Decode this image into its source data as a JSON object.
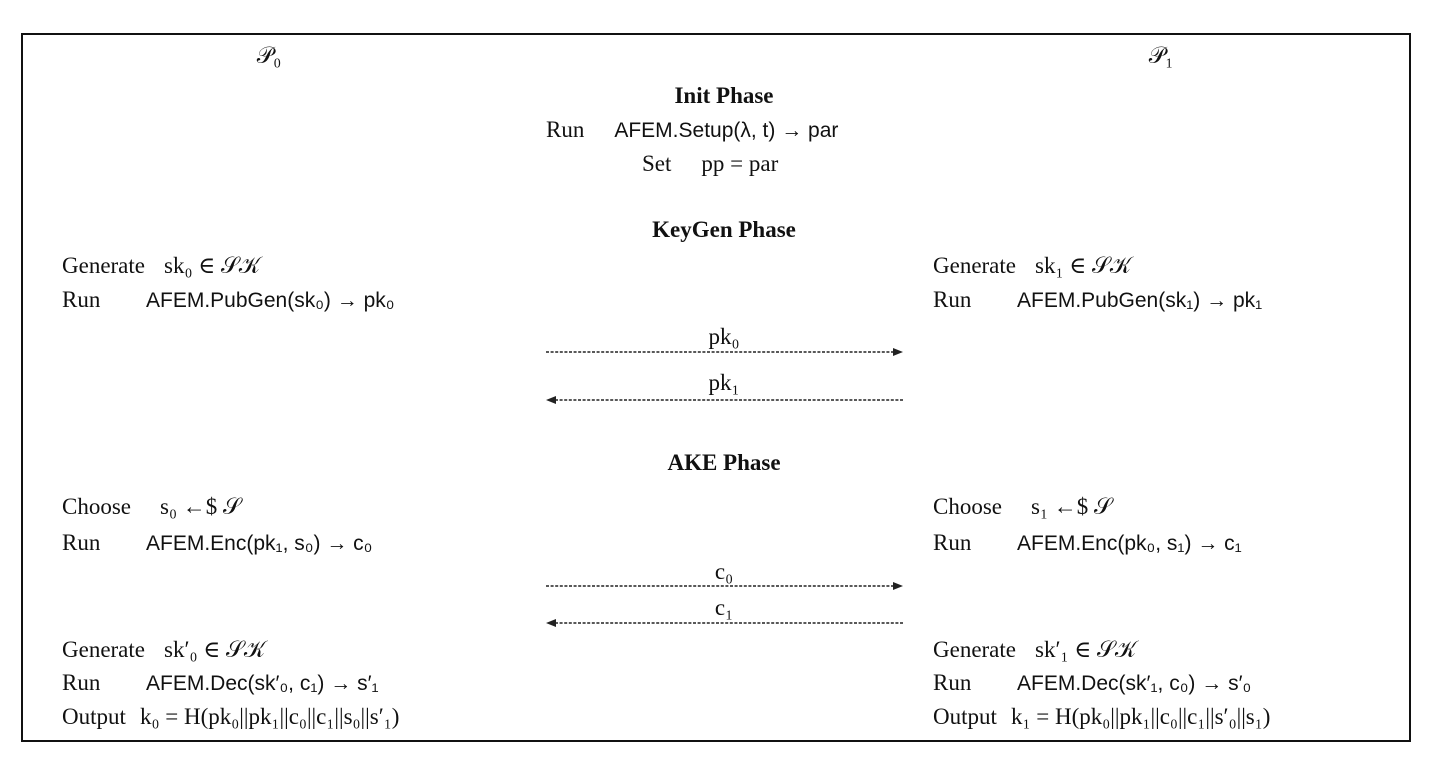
{
  "parties": {
    "left": "𝒫₀",
    "right": "𝒫₁"
  },
  "init": {
    "title": "Init Phase",
    "run_kw": "Run",
    "run_expr": "AFEM.Setup(λ, t) → par",
    "set_kw": "Set",
    "set_expr": "pp = par"
  },
  "keygen": {
    "title": "KeyGen Phase",
    "left": {
      "gen_kw": "Generate",
      "gen_expr": "sk₀ ∈ 𝒮𝒦",
      "run_kw": "Run",
      "run_expr": "AFEM.PubGen(sk₀) → pk₀"
    },
    "right": {
      "gen_kw": "Generate",
      "gen_expr": "sk₁ ∈ 𝒮𝒦",
      "run_kw": "Run",
      "run_expr": "AFEM.PubGen(sk₁) → pk₁"
    },
    "msg_right": "pk₀",
    "msg_left": "pk₁"
  },
  "ake": {
    "title": "AKE Phase",
    "left": {
      "choose_kw": "Choose",
      "choose_expr": "s₀ ←$ 𝒮",
      "run_kw": "Run",
      "run_expr": "AFEM.Enc(pk₁, s₀) → c₀",
      "gen_kw": "Generate",
      "gen_expr": "sk′₀ ∈ 𝒮𝒦",
      "dec_kw": "Run",
      "dec_expr": "AFEM.Dec(sk′₀, c₁) → s′₁",
      "out_kw": "Output",
      "out_expr": "k₀ = H(pk₀||pk₁||c₀||c₁||s₀||s′₁)"
    },
    "right": {
      "choose_kw": "Choose",
      "choose_expr": "s₁ ←$ 𝒮",
      "run_kw": "Run",
      "run_expr": "AFEM.Enc(pk₀, s₁) → c₁",
      "gen_kw": "Generate",
      "gen_expr": "sk′₁ ∈ 𝒮𝒦",
      "dec_kw": "Run",
      "dec_expr": "AFEM.Dec(sk′₁, c₀) → s′₀",
      "out_kw": "Output",
      "out_expr": "k₁ = H(pk₀||pk₁||c₀||c₁||s′₀||s₁)"
    },
    "msg_right": "c₀",
    "msg_left": "c₁"
  }
}
